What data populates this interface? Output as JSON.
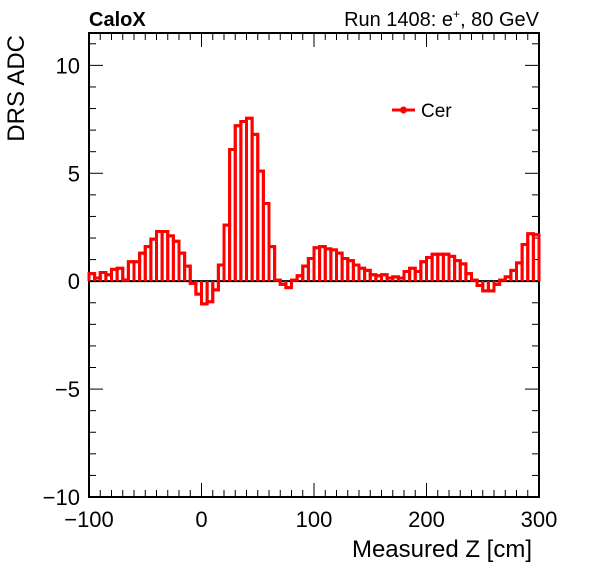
{
  "header": {
    "experiment_label": "CaloX",
    "run_label": "Run 1408: e",
    "run_sup": "+",
    "run_label_suffix": ", 80 GeV"
  },
  "colors": {
    "series": "#ff0000",
    "axis": "#000000",
    "zero_line": "#000000"
  },
  "chart_data": {
    "type": "line",
    "style": "histogram-step",
    "title": "",
    "xlabel": "Measured Z [cm]",
    "ylabel": "DRS ADC",
    "xlim": [
      -100,
      300
    ],
    "ylim": [
      -10,
      11.5
    ],
    "x_ticks": [
      -100,
      0,
      100,
      200,
      300
    ],
    "x_tick_labels": [
      "−100",
      "0",
      "100",
      "200",
      "300"
    ],
    "y_ticks": [
      -10,
      -5,
      0,
      5,
      10
    ],
    "y_tick_labels": [
      "−10",
      "−5",
      "0",
      "5",
      "10"
    ],
    "grid": false,
    "legend": {
      "position": "top-right",
      "entries": [
        "Cer"
      ]
    },
    "bin_width": 5,
    "series": [
      {
        "name": "Cer",
        "bin_edges": [
          -100,
          -95,
          -90,
          -85,
          -80,
          -75,
          -70,
          -65,
          -60,
          -55,
          -50,
          -45,
          -40,
          -35,
          -30,
          -25,
          -20,
          -15,
          -10,
          -5,
          0,
          5,
          10,
          15,
          20,
          25,
          30,
          35,
          40,
          45,
          50,
          55,
          60,
          65,
          70,
          75,
          80,
          85,
          90,
          95,
          100,
          105,
          110,
          115,
          120,
          125,
          130,
          135,
          140,
          145,
          150,
          155,
          160,
          165,
          170,
          175,
          180,
          185,
          190,
          195,
          200,
          205,
          210,
          215,
          220,
          225,
          230,
          235,
          240,
          245,
          250,
          255,
          260,
          265,
          270,
          275,
          280,
          285,
          290,
          295,
          300
        ],
        "values": [
          0.35,
          0.15,
          0.4,
          0.3,
          0.55,
          0.6,
          0.05,
          0.9,
          0.9,
          1.3,
          1.6,
          1.95,
          2.3,
          2.3,
          2.1,
          1.85,
          1.3,
          0.7,
          -0.1,
          -0.6,
          -1.05,
          -0.95,
          -0.4,
          0.75,
          2.6,
          6.1,
          7.2,
          7.4,
          7.55,
          6.8,
          5.1,
          3.6,
          1.6,
          0.05,
          -0.15,
          -0.3,
          0.05,
          0.25,
          0.7,
          1.05,
          1.55,
          1.6,
          1.5,
          1.45,
          1.3,
          1.05,
          0.95,
          0.75,
          0.6,
          0.5,
          0.3,
          0.25,
          0.3,
          0.15,
          0.2,
          0.15,
          0.45,
          0.6,
          0.45,
          0.9,
          1.1,
          1.25,
          1.25,
          1.25,
          1.15,
          0.95,
          0.8,
          0.35,
          0.05,
          -0.2,
          -0.45,
          -0.45,
          -0.15,
          0.05,
          0.2,
          0.5,
          0.85,
          1.7,
          2.2,
          2.15
        ]
      }
    ]
  }
}
